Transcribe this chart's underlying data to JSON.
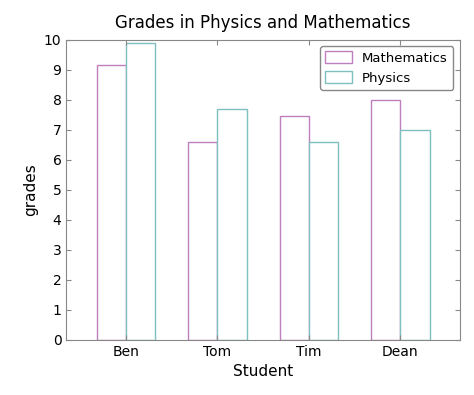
{
  "title": "Grades in Physics and Mathematics",
  "xlabel": "Student",
  "ylabel": "grades",
  "students": [
    "Ben",
    "Tom",
    "Tim",
    "Dean"
  ],
  "mathematics": [
    9.15,
    6.6,
    7.45,
    8.0
  ],
  "physics": [
    9.9,
    7.7,
    6.6,
    7.0
  ],
  "math_color": "#bf7fbf",
  "physics_color": "#7fbfbf",
  "ylim": [
    0,
    10
  ],
  "yticks": [
    0,
    1,
    2,
    3,
    4,
    5,
    6,
    7,
    8,
    9,
    10
  ],
  "bar_width": 0.32,
  "background_color": "#ffffff",
  "legend_labels": [
    "Mathematics",
    "Physics"
  ]
}
